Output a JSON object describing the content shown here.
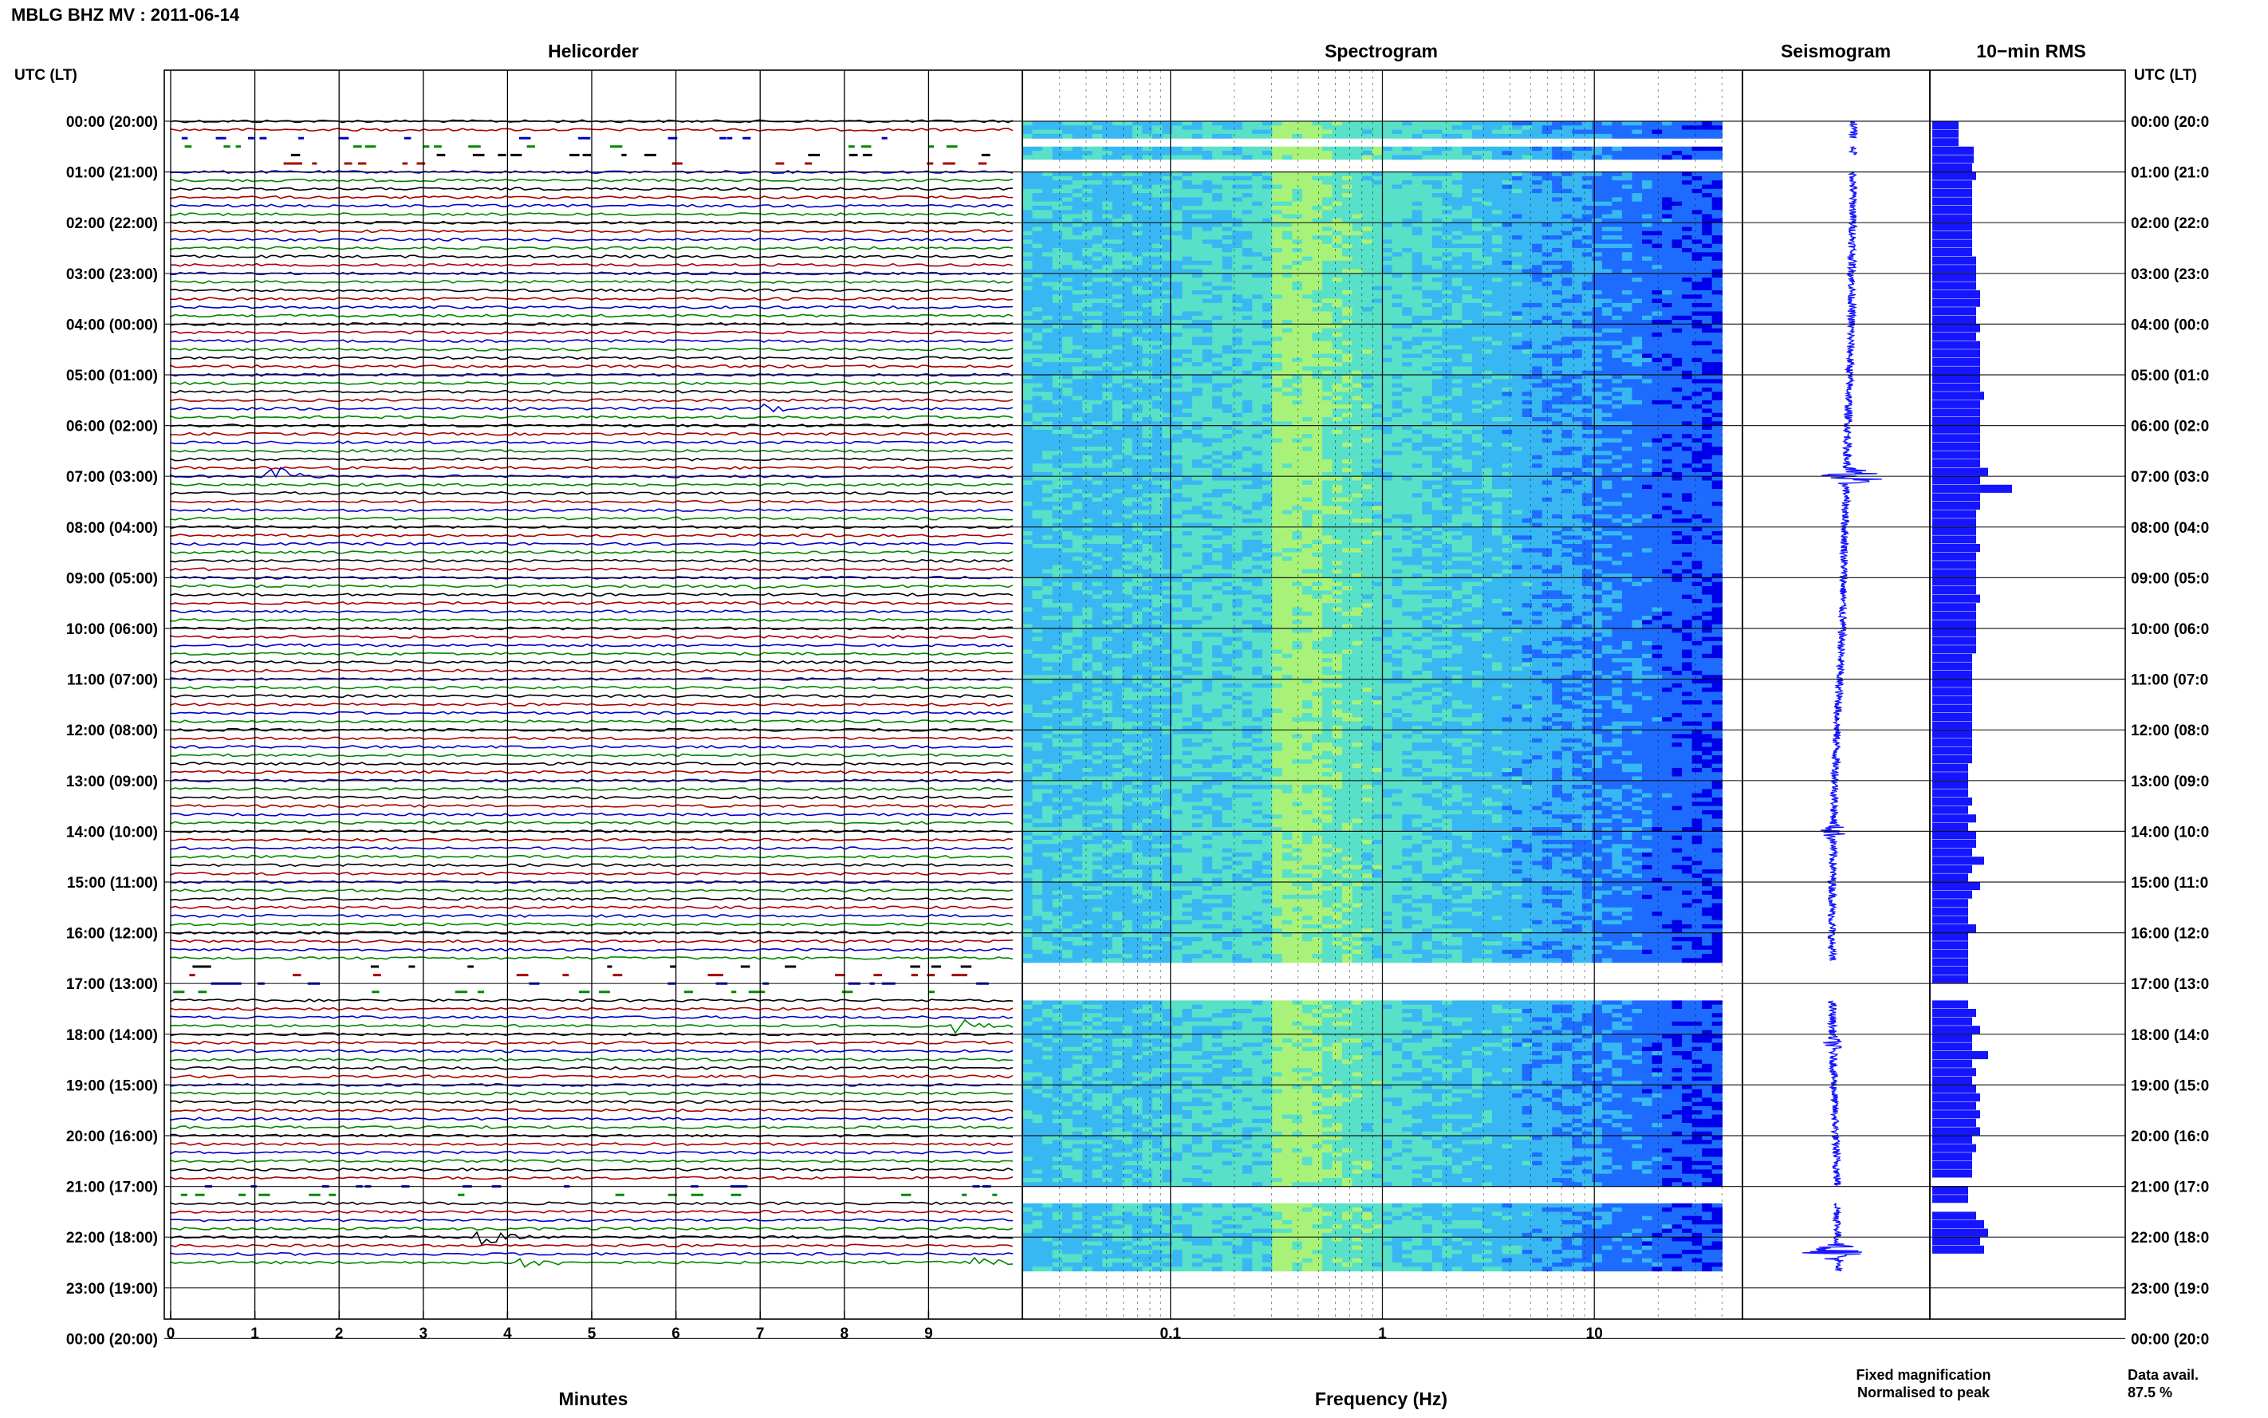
{
  "figure": {
    "station_title": "MBLG BHZ MV : 2011-06-14",
    "utc_lt_label": "UTC (LT)",
    "data_avail_label": "Data avail.",
    "data_avail_value": "87.5 %"
  },
  "panels": {
    "helicorder": "Helicorder",
    "spectrogram": "Spectrogram",
    "seismogram": "Seismogram",
    "rms": "10−min RMS"
  },
  "hour_labels": [
    "00:00 (20:00)",
    "01:00 (21:00)",
    "02:00 (22:00)",
    "03:00 (23:00)",
    "04:00 (00:00)",
    "05:00 (01:00)",
    "06:00 (02:00)",
    "07:00 (03:00)",
    "08:00 (04:00)",
    "09:00 (05:00)",
    "10:00 (06:00)",
    "11:00 (07:00)",
    "12:00 (08:00)",
    "13:00 (09:00)",
    "14:00 (10:00)",
    "15:00 (11:00)",
    "16:00 (12:00)",
    "17:00 (13:00)",
    "18:00 (14:00)",
    "19:00 (15:00)",
    "20:00 (16:00)",
    "21:00 (17:00)",
    "22:00 (18:00)",
    "23:00 (19:00)",
    "00:00 (20:00)"
  ],
  "right_hour_labels": [
    "00:00 (20:0",
    "01:00 (21:0",
    "02:00 (22:0",
    "03:00 (23:0",
    "04:00 (00:0",
    "05:00 (01:0",
    "06:00 (02:0",
    "07:00 (03:0",
    "08:00 (04:0",
    "09:00 (05:0",
    "10:00 (06:0",
    "11:00 (07:0",
    "12:00 (08:0",
    "13:00 (09:0",
    "14:00 (10:0",
    "15:00 (11:0",
    "16:00 (12:0",
    "17:00 (13:0",
    "18:00 (14:0",
    "19:00 (15:0",
    "20:00 (16:0",
    "21:00 (17:0",
    "22:00 (18:0",
    "23:00 (19:0",
    "00:00 (20:0"
  ],
  "legend": {
    "fixed": "Fixed magnification",
    "normalised": "Normalised to peak",
    "fixed_color": "#0000ee",
    "normalised_color": "#ee0000"
  },
  "colors": {
    "trace_cycle": [
      "#000000",
      "#aa0000",
      "#0000cc",
      "#008800"
    ],
    "seismogram": "#1515ff",
    "rms_bar": "#1515ff"
  },
  "chart_data": [
    {
      "type": "helicorder",
      "title": "Helicorder",
      "xlabel": "Minutes",
      "x_ticks": [
        "0",
        "1",
        "2",
        "3",
        "4",
        "5",
        "6",
        "7",
        "8",
        "9"
      ],
      "xlim": [
        0,
        10
      ],
      "rows_per_hour": 6,
      "y_range_utc_hours": [
        0,
        24
      ],
      "traces_until_hour": 22.8,
      "gaps_utc_hours": [
        [
          0.33,
          1.0
        ],
        [
          16.55,
          17.33
        ],
        [
          21.0,
          21.33
        ]
      ],
      "events": [
        {
          "utc_hour": 7.0,
          "minute": 1.2,
          "relative_amplitude": 1.0
        },
        {
          "utc_hour": 5.67,
          "minute": 7.0,
          "relative_amplitude": 0.3
        },
        {
          "utc_hour": 9.17,
          "minute": 7.0,
          "relative_amplitude": 0.3
        },
        {
          "utc_hour": 17.83,
          "minute": 9.4,
          "relative_amplitude": 0.5
        },
        {
          "utc_hour": 22.0,
          "minute": 3.7,
          "relative_amplitude": 0.7
        },
        {
          "utc_hour": 22.5,
          "minute": 4.2,
          "relative_amplitude": 0.6
        },
        {
          "utc_hour": 22.5,
          "minute": 9.6,
          "relative_amplitude": 0.5
        }
      ]
    },
    {
      "type": "heatmap",
      "title": "Spectrogram",
      "xlabel": "Frequency (Hz)",
      "x_scale": "log",
      "x_ticks": [
        "0.1",
        "1",
        "10"
      ],
      "xlim": [
        0.02,
        50
      ],
      "y_range_utc_hours": [
        0,
        24
      ],
      "colormap": [
        "#00009a",
        "#0000e8",
        "#1e6cff",
        "#38b8f2",
        "#58e0c8",
        "#a8f27a",
        "#f0f06a"
      ],
      "peak_band_hz": [
        0.3,
        0.5
      ],
      "data_until_hour": 22.67,
      "gaps_utc_hours": [
        [
          0.33,
          0.5
        ],
        [
          0.67,
          1.0
        ],
        [
          16.55,
          17.33
        ],
        [
          21.0,
          21.33
        ]
      ]
    },
    {
      "type": "line",
      "title": "Seismogram",
      "y_range_utc_hours": [
        0,
        24
      ],
      "offset_series": [
        [
          0,
          0.3
        ],
        [
          2,
          0.28
        ],
        [
          4,
          0.25
        ],
        [
          6,
          0.18
        ],
        [
          8,
          0.12
        ],
        [
          10,
          0.06
        ],
        [
          12,
          -0.05
        ],
        [
          14,
          -0.12
        ],
        [
          16,
          -0.16
        ],
        [
          18,
          -0.14
        ],
        [
          20,
          -0.08
        ],
        [
          21,
          -0.04
        ]
      ],
      "bursts": [
        {
          "utc_hour": 7.0,
          "relative_amplitude": 1.0
        },
        {
          "utc_hour": 14.0,
          "relative_amplitude": 0.25
        },
        {
          "utc_hour": 18.2,
          "relative_amplitude": 0.15
        },
        {
          "utc_hour": 22.3,
          "relative_amplitude": 0.7
        }
      ]
    },
    {
      "type": "bar",
      "title": "10−min RMS",
      "orientation": "horizontal",
      "y_range_utc_hours": [
        0,
        24
      ],
      "bins_per_hour": 6,
      "relative_values": [
        0.33,
        0.33,
        0.33,
        0.52,
        0.52,
        0.5,
        0.55,
        0.5,
        0.5,
        0.5,
        0.5,
        0.5,
        0.5,
        0.5,
        0.5,
        0.5,
        0.55,
        0.55,
        0.55,
        0.55,
        0.6,
        0.6,
        0.55,
        0.55,
        0.6,
        0.55,
        0.6,
        0.6,
        0.6,
        0.6,
        0.6,
        0.6,
        0.65,
        0.6,
        0.6,
        0.6,
        0.6,
        0.6,
        0.6,
        0.6,
        0.6,
        0.7,
        0.6,
        1.0,
        0.6,
        0.6,
        0.55,
        0.55,
        0.55,
        0.55,
        0.6,
        0.55,
        0.55,
        0.55,
        0.55,
        0.55,
        0.6,
        0.55,
        0.55,
        0.55,
        0.55,
        0.55,
        0.55,
        0.5,
        0.5,
        0.5,
        0.5,
        0.5,
        0.5,
        0.5,
        0.5,
        0.5,
        0.5,
        0.5,
        0.5,
        0.5,
        0.45,
        0.45,
        0.45,
        0.45,
        0.5,
        0.45,
        0.55,
        0.45,
        0.55,
        0.55,
        0.5,
        0.65,
        0.5,
        0.45,
        0.6,
        0.5,
        0.45,
        0.45,
        0.45,
        0.55,
        0.45,
        0.45,
        0.45,
        0.45,
        0.45,
        0.45,
        0.0,
        0.0,
        0.45,
        0.55,
        0.5,
        0.6,
        0.5,
        0.5,
        0.7,
        0.5,
        0.55,
        0.5,
        0.55,
        0.6,
        0.55,
        0.6,
        0.55,
        0.6,
        0.5,
        0.55,
        0.5,
        0.5,
        0.5,
        0.0,
        0.45,
        0.45,
        0.0,
        0.55,
        0.65,
        0.7,
        0.6,
        0.65,
        0.0,
        0.0,
        0.0,
        0.0,
        0.0,
        0.0,
        0.0,
        0.0
      ]
    }
  ]
}
